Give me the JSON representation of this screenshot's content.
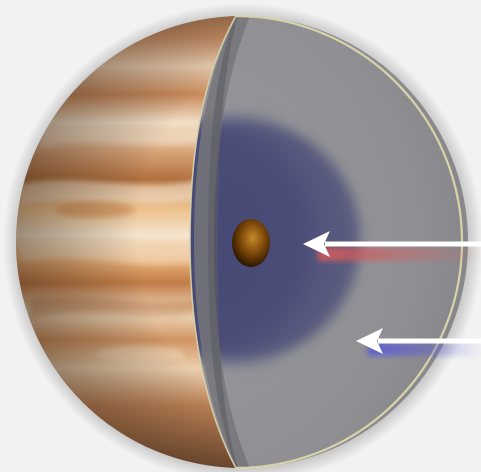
{
  "illustration": {
    "subject": "planet-cutaway",
    "colors": {
      "background": "#f2f2f2",
      "band_light": "#f1dcc0",
      "band_mid": "#dca877",
      "band_dark": "#b9794a",
      "band_deep": "#8f5a35",
      "mantle_gray": "#8f8f93",
      "cut_face_gray": "#77777b",
      "inner_layer_blue": "#4a4d78",
      "core": "#6b3d08",
      "rim": "#d8d3a8",
      "arrow_white": "#ffffff",
      "arrow_glow_red": "#d65a5a",
      "arrow_glow_blue": "#5a5ad6"
    },
    "arrows": [
      {
        "target": "core",
        "glow": "red"
      },
      {
        "target": "inner-layer",
        "glow": "blue"
      }
    ]
  }
}
